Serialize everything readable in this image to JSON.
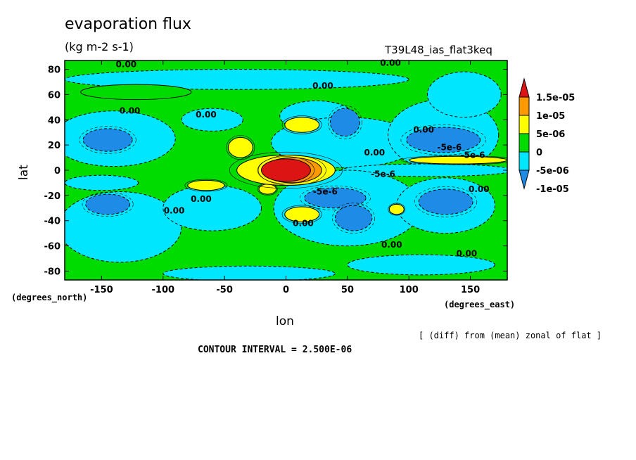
{
  "title": "evaporation flux",
  "units": "(kg m-2 s-1)",
  "run_name": "T39L48_ias_flat3keq",
  "x_unit_label": "(degrees_east)",
  "y_unit_label": "(degrees_north)",
  "difference_note": "[ (diff) from (mean) zonal of flat ]",
  "contour_interval": "CONTOUR INTERVAL = 2.500E-06",
  "colors": {
    "lt_neg2": "#1e8ce6",
    "neg1": "#00e6ff",
    "zero": "#00dc00",
    "pos1": "#ffff00",
    "pos2": "#ff9900",
    "gt_pos3": "#dc1414",
    "contour": "#000000"
  },
  "chart_data": {
    "type": "heatmap",
    "xlabel": "lon",
    "ylabel": "lat",
    "xlim": [
      -180,
      180
    ],
    "ylim": [
      -87,
      87
    ],
    "x_ticks": [
      -150,
      -100,
      -50,
      0,
      50,
      100,
      150
    ],
    "y_ticks": [
      -80,
      -60,
      -40,
      -20,
      0,
      20,
      40,
      60,
      80
    ],
    "colorbar": {
      "labels": [
        "1.5e-05",
        "1e-05",
        "5e-06",
        "0",
        "-5e-06",
        "-1e-05"
      ],
      "levels": [
        -1e-05,
        -5e-06,
        0,
        5e-06,
        1e-05,
        1.5e-05
      ]
    },
    "contour_labels": [
      {
        "text": "0.00",
        "lon": -130,
        "lat": 84
      },
      {
        "text": "0.00",
        "lon": 85,
        "lat": 85
      },
      {
        "text": "0.00",
        "lon": 30,
        "lat": 67
      },
      {
        "text": "0.00",
        "lon": -127,
        "lat": 47
      },
      {
        "text": "0.00",
        "lon": -65,
        "lat": 44
      },
      {
        "text": "0.00",
        "lon": 112,
        "lat": 32
      },
      {
        "text": "-5e-6",
        "lon": 133,
        "lat": 18
      },
      {
        "text": "-5e-6",
        "lon": 152,
        "lat": 12
      },
      {
        "text": "0.00",
        "lon": 72,
        "lat": 14
      },
      {
        "text": "-5e-6",
        "lon": 79,
        "lat": -3
      },
      {
        "text": "0.00",
        "lon": 157,
        "lat": -15
      },
      {
        "text": "-5e-6",
        "lon": 32,
        "lat": -17
      },
      {
        "text": "0.00",
        "lon": -69,
        "lat": -23
      },
      {
        "text": "0.00",
        "lon": -91,
        "lat": -32
      },
      {
        "text": "0.00",
        "lon": 14,
        "lat": -42
      },
      {
        "text": "0.00",
        "lon": 86,
        "lat": -59
      },
      {
        "text": "0.00",
        "lon": 147,
        "lat": -66
      }
    ],
    "features": [
      {
        "level": -1,
        "lon": -40,
        "lat": 72,
        "rlon": 140,
        "rlat": 8
      },
      {
        "level": 0,
        "lon": -122,
        "lat": 62,
        "rlon": 45,
        "rlat": 6
      },
      {
        "level": -1,
        "lon": -140,
        "lat": 25,
        "rlon": 50,
        "rlat": 22
      },
      {
        "level": -2,
        "lon": -145,
        "lat": 24,
        "rlon": 20,
        "rlat": 9
      },
      {
        "level": -1,
        "lon": -60,
        "lat": 40,
        "rlon": 25,
        "rlat": 9
      },
      {
        "level": -1,
        "lon": 25,
        "lat": 43,
        "rlon": 30,
        "rlat": 12
      },
      {
        "level": -1,
        "lon": 48,
        "lat": 22,
        "rlon": 60,
        "rlat": 20
      },
      {
        "level": -2,
        "lon": 48,
        "lat": 38,
        "rlon": 12,
        "rlat": 11
      },
      {
        "level": -1,
        "lon": 128,
        "lat": 28,
        "rlon": 45,
        "rlat": 28
      },
      {
        "level": -2,
        "lon": 128,
        "lat": 24,
        "rlon": 30,
        "rlat": 10
      },
      {
        "level": -1,
        "lon": 145,
        "lat": 60,
        "rlon": 30,
        "rlat": 18
      },
      {
        "level": -1,
        "lon": 115,
        "lat": 0,
        "rlon": 70,
        "rlat": 5
      },
      {
        "level": -1,
        "lon": -135,
        "lat": -45,
        "rlon": 50,
        "rlat": 28
      },
      {
        "level": -1,
        "lon": -150,
        "lat": -10,
        "rlon": 30,
        "rlat": 6
      },
      {
        "level": -1,
        "lon": -60,
        "lat": -30,
        "rlon": 40,
        "rlat": 18
      },
      {
        "level": -2,
        "lon": -145,
        "lat": -27,
        "rlon": 18,
        "rlat": 8
      },
      {
        "level": -1,
        "lon": 50,
        "lat": -30,
        "rlon": 60,
        "rlat": 30
      },
      {
        "level": -2,
        "lon": 40,
        "lat": -22,
        "rlon": 25,
        "rlat": 8
      },
      {
        "level": -2,
        "lon": 55,
        "lat": -38,
        "rlon": 15,
        "rlat": 10
      },
      {
        "level": -1,
        "lon": 130,
        "lat": -28,
        "rlon": 40,
        "rlat": 22
      },
      {
        "level": -2,
        "lon": 130,
        "lat": -25,
        "rlon": 22,
        "rlat": 10
      },
      {
        "level": -1,
        "lon": 110,
        "lat": -75,
        "rlon": 60,
        "rlat": 8
      },
      {
        "level": -1,
        "lon": -30,
        "lat": -82,
        "rlon": 70,
        "rlat": 6
      },
      {
        "level": 1,
        "lon": 13,
        "lat": 36,
        "rlon": 14,
        "rlat": 6
      },
      {
        "level": 1,
        "lon": -37,
        "lat": 18,
        "rlon": 10,
        "rlat": 8
      },
      {
        "level": 1,
        "lon": -65,
        "lat": -12,
        "rlon": 15,
        "rlat": 4
      },
      {
        "level": 1,
        "lon": -15,
        "lat": -15,
        "rlon": 7,
        "rlat": 4
      },
      {
        "level": 1,
        "lon": 13,
        "lat": -35,
        "rlon": 14,
        "rlat": 6
      },
      {
        "level": 1,
        "lon": 90,
        "lat": -31,
        "rlon": 6,
        "rlat": 4
      },
      {
        "level": 1,
        "lon": 140,
        "lat": 8,
        "rlon": 40,
        "rlat": 3
      },
      {
        "level": 1,
        "lon": 0,
        "lat": 0,
        "rlon": 40,
        "rlat": 12
      },
      {
        "level": 2,
        "lon": 5,
        "lat": 0,
        "rlon": 24,
        "rlat": 10
      },
      {
        "level": 3,
        "lon": 0,
        "lat": 0,
        "rlon": 20,
        "rlat": 9
      }
    ]
  }
}
